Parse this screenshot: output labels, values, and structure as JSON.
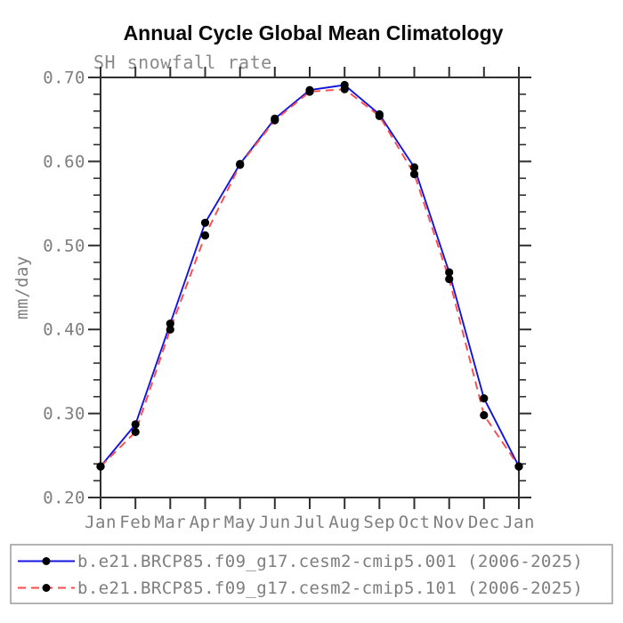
{
  "header": {
    "title": "Annual Cycle Global Mean Climatology",
    "subtitle": "SH snowfall rate"
  },
  "chart_data": {
    "type": "line",
    "title": "Annual Cycle Global Mean Climatology",
    "subtitle": "SH snowfall rate",
    "xlabel": "",
    "ylabel": "mm/day",
    "categories": [
      "Jan",
      "Feb",
      "Mar",
      "Apr",
      "May",
      "Jun",
      "Jul",
      "Aug",
      "Sep",
      "Oct",
      "Nov",
      "Dec",
      "Jan"
    ],
    "series": [
      {
        "name": "b.e21.BRCP85.f09_g17.cesm2-cmip5.001 (2006-2025)",
        "color": "#1414e0",
        "line_style": "solid",
        "values": [
          0.237,
          0.287,
          0.407,
          0.527,
          0.597,
          0.651,
          0.685,
          0.691,
          0.656,
          0.593,
          0.468,
          0.318,
          0.237
        ]
      },
      {
        "name": "b.e21.BRCP85.f09_g17.cesm2-cmip5.101 (2006-2025)",
        "color": "#ff4a4a",
        "line_style": "dashed",
        "values": [
          0.237,
          0.278,
          0.4,
          0.512,
          0.596,
          0.649,
          0.683,
          0.686,
          0.654,
          0.585,
          0.46,
          0.298,
          0.237
        ]
      }
    ],
    "ylim": [
      0.2,
      0.7
    ],
    "ytick_major_step": 0.1,
    "ytick_minor_step": 0.02,
    "ytick_labels": [
      "0.20",
      "0.30",
      "0.40",
      "0.50",
      "0.60",
      "0.70"
    ],
    "marker": {
      "shape": "circle",
      "color": "#000000"
    },
    "grid": false,
    "legend_position": "bottom"
  },
  "colors": {
    "background": "#ffffff",
    "axis": "#2f2f2f",
    "label_text": "#7e7e7e",
    "title_text": "#0a0a0a",
    "legend_border": "#9b9b9b"
  }
}
